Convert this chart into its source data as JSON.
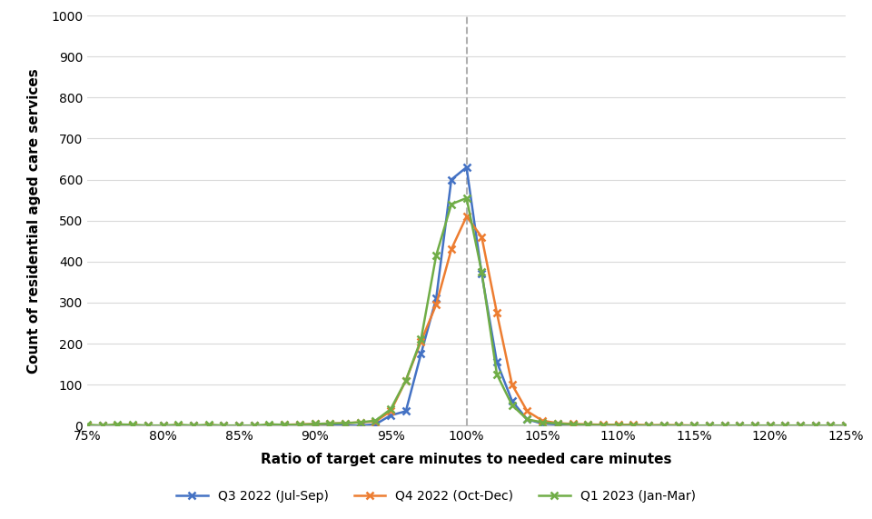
{
  "series": [
    {
      "label": "Q3 2022 (Jul-Sep)",
      "color": "#4472C4",
      "x": [
        0.75,
        0.76,
        0.77,
        0.78,
        0.79,
        0.8,
        0.81,
        0.82,
        0.83,
        0.84,
        0.85,
        0.86,
        0.87,
        0.88,
        0.89,
        0.9,
        0.91,
        0.92,
        0.93,
        0.94,
        0.95,
        0.96,
        0.97,
        0.98,
        0.99,
        1.0,
        1.01,
        1.02,
        1.03,
        1.04,
        1.05,
        1.06,
        1.07,
        1.08,
        1.09,
        1.1,
        1.11,
        1.12,
        1.13,
        1.14,
        1.15,
        1.16,
        1.17,
        1.18,
        1.19,
        1.2,
        1.21,
        1.22,
        1.23,
        1.24,
        1.25
      ],
      "y": [
        0,
        0,
        0,
        0,
        0,
        0,
        0,
        0,
        0,
        0,
        0,
        0,
        0,
        0,
        0,
        0,
        0,
        0,
        0,
        3,
        25,
        35,
        175,
        310,
        600,
        630,
        370,
        155,
        60,
        15,
        5,
        3,
        2,
        1,
        1,
        0,
        0,
        0,
        0,
        0,
        0,
        0,
        0,
        0,
        0,
        0,
        0,
        0,
        0,
        0,
        0
      ]
    },
    {
      "label": "Q4 2022 (Oct-Dec)",
      "color": "#ED7D31",
      "x": [
        0.75,
        0.76,
        0.77,
        0.78,
        0.79,
        0.8,
        0.81,
        0.82,
        0.83,
        0.84,
        0.85,
        0.86,
        0.87,
        0.88,
        0.89,
        0.9,
        0.91,
        0.92,
        0.93,
        0.94,
        0.95,
        0.96,
        0.97,
        0.98,
        0.99,
        1.0,
        1.01,
        1.02,
        1.03,
        1.04,
        1.05,
        1.06,
        1.07,
        1.08,
        1.09,
        1.1,
        1.11,
        1.12,
        1.13,
        1.14,
        1.15,
        1.16,
        1.17,
        1.18,
        1.19,
        1.2,
        1.21,
        1.22,
        1.23,
        1.24,
        1.25
      ],
      "y": [
        0,
        0,
        0,
        0,
        0,
        0,
        0,
        0,
        0,
        0,
        0,
        0,
        0,
        2,
        3,
        4,
        5,
        6,
        8,
        10,
        35,
        110,
        205,
        295,
        430,
        510,
        460,
        275,
        100,
        35,
        12,
        6,
        4,
        3,
        2,
        2,
        2,
        1,
        1,
        1,
        0,
        0,
        0,
        0,
        0,
        0,
        0,
        0,
        0,
        0,
        0
      ]
    },
    {
      "label": "Q1 2023 (Jan-Mar)",
      "color": "#70AD47",
      "x": [
        0.75,
        0.76,
        0.77,
        0.78,
        0.79,
        0.8,
        0.81,
        0.82,
        0.83,
        0.84,
        0.85,
        0.86,
        0.87,
        0.88,
        0.89,
        0.9,
        0.91,
        0.92,
        0.93,
        0.94,
        0.95,
        0.96,
        0.97,
        0.98,
        0.99,
        1.0,
        1.01,
        1.02,
        1.03,
        1.04,
        1.05,
        1.06,
        1.07,
        1.08,
        1.09,
        1.1,
        1.11,
        1.12,
        1.13,
        1.14,
        1.15,
        1.16,
        1.17,
        1.18,
        1.19,
        1.2,
        1.21,
        1.22,
        1.23,
        1.24,
        1.25
      ],
      "y": [
        2,
        0,
        3,
        2,
        0,
        0,
        2,
        0,
        2,
        0,
        0,
        0,
        3,
        2,
        2,
        4,
        5,
        6,
        8,
        12,
        40,
        110,
        210,
        415,
        540,
        555,
        375,
        125,
        50,
        15,
        8,
        5,
        3,
        2,
        1,
        1,
        1,
        0,
        1,
        0,
        0,
        0,
        0,
        0,
        0,
        0,
        0,
        0,
        0,
        0,
        0
      ]
    }
  ],
  "xlabel": "Ratio of target care minutes to needed care minutes",
  "ylabel": "Count of residential aged care services",
  "xlim": [
    0.75,
    1.25
  ],
  "ylim": [
    0,
    1000
  ],
  "yticks": [
    0,
    100,
    200,
    300,
    400,
    500,
    600,
    700,
    800,
    900,
    1000
  ],
  "xticks": [
    0.75,
    0.8,
    0.85,
    0.9,
    0.95,
    1.0,
    1.05,
    1.1,
    1.15,
    1.2,
    1.25
  ],
  "xtick_labels": [
    "75%",
    "80%",
    "85%",
    "90%",
    "95%",
    "100%",
    "105%",
    "110%",
    "115%",
    "120%",
    "125%"
  ],
  "vline_x": 1.0,
  "vline_color": "#B0B0B0",
  "grid_color": "#D9D9D9",
  "background_color": "#FFFFFF",
  "legend_fontsize": 10,
  "xlabel_fontsize": 11,
  "ylabel_fontsize": 11,
  "tick_fontsize": 10
}
